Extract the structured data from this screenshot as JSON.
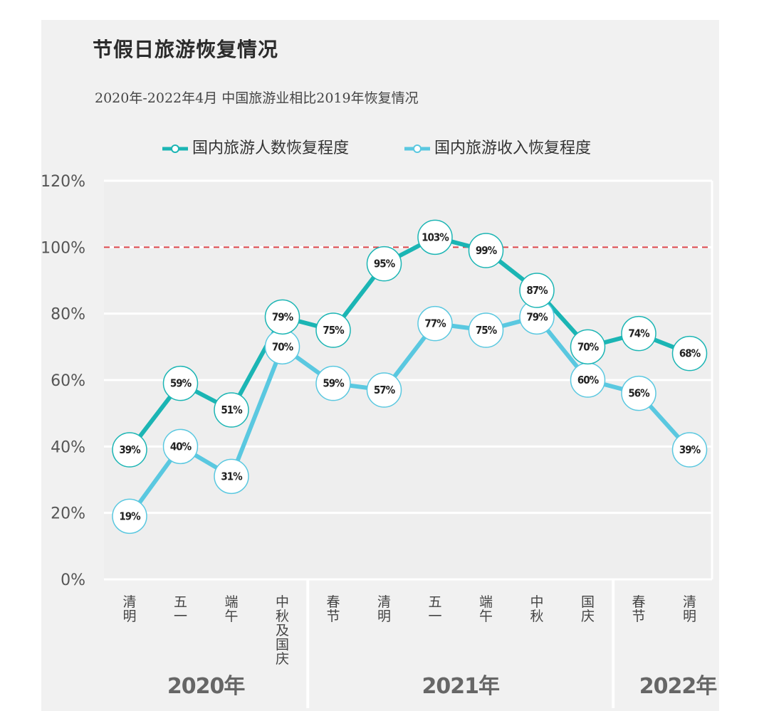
{
  "title": "节假日旅游恢复情况",
  "subtitle": "2020年-2022年4月 中国旅游业相比2019年恢复情况",
  "colors": {
    "series1": "#1bb5b4",
    "series2": "#5ac8e0",
    "reference": "#d9444a",
    "panel": "#f1f1f1"
  },
  "chart_data": {
    "type": "line",
    "title": "节假日旅游恢复情况",
    "subtitle": "2020年-2022年4月 中国旅游业相比2019年恢复情况",
    "categories": [
      "清明",
      "五一",
      "端午",
      "中秋及国庆",
      "春节",
      "清明",
      "五一",
      "端午",
      "中秋",
      "国庆",
      "春节",
      "清明"
    ],
    "groups": [
      {
        "label": "2020年",
        "from": 0,
        "to": 3
      },
      {
        "label": "2021年",
        "from": 4,
        "to": 9
      },
      {
        "label": "2022年",
        "from": 10,
        "to": 11
      }
    ],
    "series": [
      {
        "name": "国内旅游人数恢复程度",
        "values": [
          39,
          59,
          51,
          79,
          75,
          95,
          103,
          99,
          87,
          70,
          74,
          68
        ],
        "labels": [
          "39%",
          "59%",
          "51%",
          "79%",
          "75%",
          "95%",
          "103%",
          "99%",
          "87%",
          "70%",
          "74%",
          "68%"
        ]
      },
      {
        "name": "国内旅游收入恢复程度",
        "values": [
          19,
          40,
          31,
          70,
          59,
          57,
          77,
          75,
          79,
          60,
          56,
          39
        ],
        "labels": [
          "19%",
          "40%",
          "31%",
          "70%",
          "59%",
          "57%",
          "77%",
          "75%",
          "79%",
          "60%",
          "56%",
          "39%"
        ]
      }
    ],
    "y_ticks": [
      "0%",
      "20%",
      "40%",
      "60%",
      "80%",
      "100%",
      "120%"
    ],
    "ylim": [
      0,
      120
    ],
    "reference_line": 100,
    "legend_position": "top",
    "grid": true
  }
}
